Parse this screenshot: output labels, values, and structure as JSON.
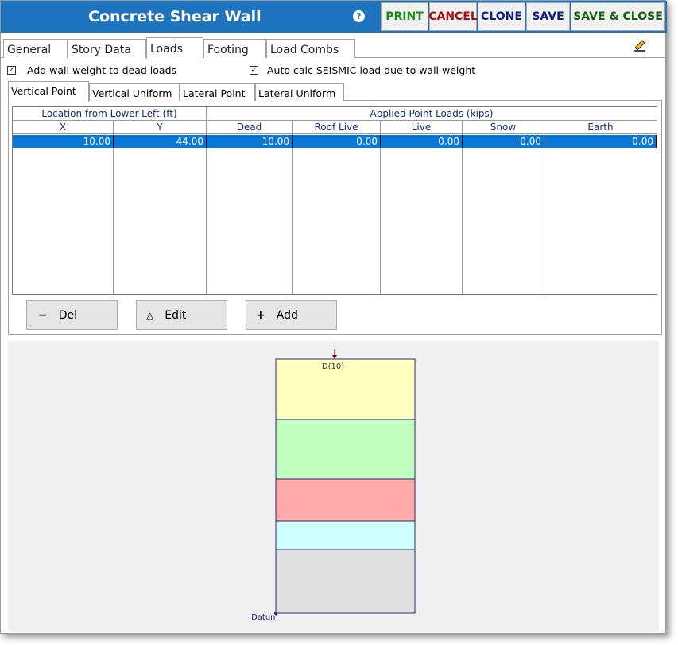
{
  "window": {
    "title": "Concrete Shear Wall",
    "help": "?"
  },
  "toolbar": [
    "PRINT",
    "CANCEL",
    "CLONE",
    "SAVE",
    "SAVE & CLOSE"
  ],
  "tabs": [
    "General",
    "Story Data",
    "Loads",
    "Footing",
    "Load Combs"
  ],
  "options": [
    "Add wall weight to dead loads",
    "Auto calc SEISMIC load due to wall weight"
  ],
  "subtabs": [
    "Vertical Point",
    "Vertical Uniform",
    "Lateral Point",
    "Lateral Uniform"
  ],
  "table": {
    "groups": [
      "Location from Lower-Left  (ft)",
      "Applied Point Loads   (kips)"
    ],
    "columns": [
      "X",
      "Y",
      "Dead",
      "Roof Live",
      "Live",
      "Snow",
      "Earth"
    ],
    "rows": [
      [
        "10.00",
        "44.00",
        "10.00",
        "0.00",
        "0.00",
        "0.00",
        "0.00"
      ]
    ]
  },
  "actions": [
    "Del",
    "Edit",
    "Add"
  ],
  "diagram": {
    "load_label": "D(10)",
    "datum": "Datum"
  }
}
